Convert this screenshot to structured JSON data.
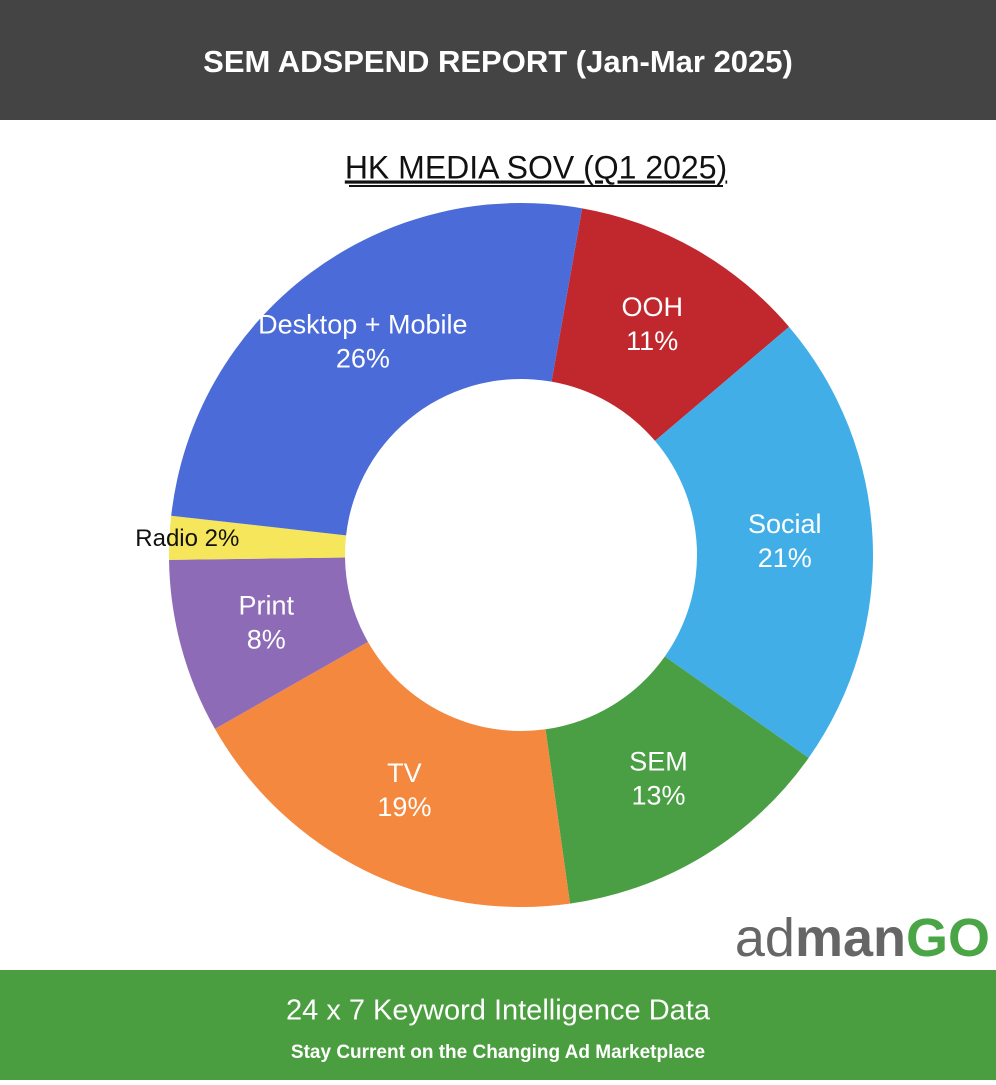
{
  "header": {
    "title": "SEM ADSPEND REPORT (Jan-Mar 2025)"
  },
  "chart_data": {
    "type": "donut",
    "title": "HK MEDIA SOV (Q1 2025)",
    "categories": [
      "OOH",
      "Social",
      "SEM",
      "TV",
      "Print",
      "Radio",
      "Desktop + Mobile"
    ],
    "values": [
      11,
      21,
      13,
      19,
      8,
      2,
      26
    ],
    "value_labels": [
      "11%",
      "21%",
      "13%",
      "19%",
      "8%",
      "2%",
      "26%"
    ],
    "colors": [
      "#c1282e",
      "#42aee8",
      "#4a9e44",
      "#f4883f",
      "#8e6bb7",
      "#f5e65b",
      "#4b6bd8"
    ]
  },
  "logo": {
    "light": "ad",
    "bold": "man",
    "accent": "GO"
  },
  "footer": {
    "title": "24 x 7 Keyword Intelligence Data",
    "subtitle": "Stay Current on the Changing Ad Marketplace"
  }
}
